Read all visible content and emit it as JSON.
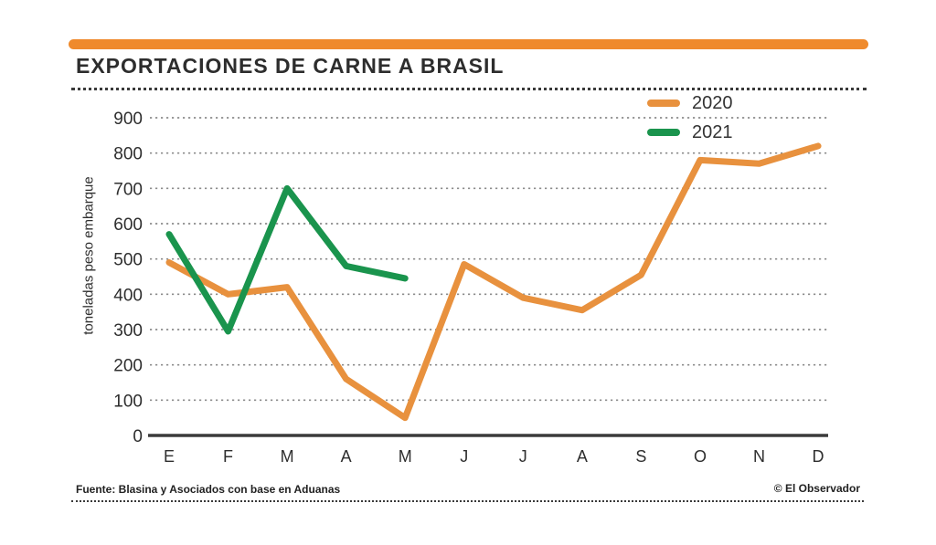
{
  "header": {
    "title": "EXPORTACIONES DE CARNE A BRASIL"
  },
  "colors": {
    "accent_bar": "#EF8A2C",
    "series_2020": "#E8913E",
    "series_2021": "#1A944D",
    "gridline": "#8c8c8c",
    "axis": "#3b3b3b",
    "tick_text": "#2e2e2e"
  },
  "chart_data": {
    "type": "line",
    "title": "EXPORTACIONES DE CARNE A BRASIL",
    "xlabel": "",
    "ylabel": "toneladas peso embarque",
    "categories": [
      "E",
      "F",
      "M",
      "A",
      "M",
      "J",
      "J",
      "A",
      "S",
      "O",
      "N",
      "D"
    ],
    "ylim": [
      0,
      900
    ],
    "ytick_step": 100,
    "grid": "horizontal-dotted",
    "legend_position": "top-right",
    "series": [
      {
        "name": "2020",
        "color": "#E8913E",
        "values": [
          490,
          400,
          420,
          160,
          50,
          485,
          390,
          355,
          455,
          780,
          770,
          820
        ]
      },
      {
        "name": "2021",
        "color": "#1A944D",
        "values": [
          570,
          295,
          700,
          480,
          445
        ]
      }
    ]
  },
  "footer": {
    "source": "Fuente: Blasina y Asociados con base en Aduanas",
    "credit": "© El Observador"
  }
}
